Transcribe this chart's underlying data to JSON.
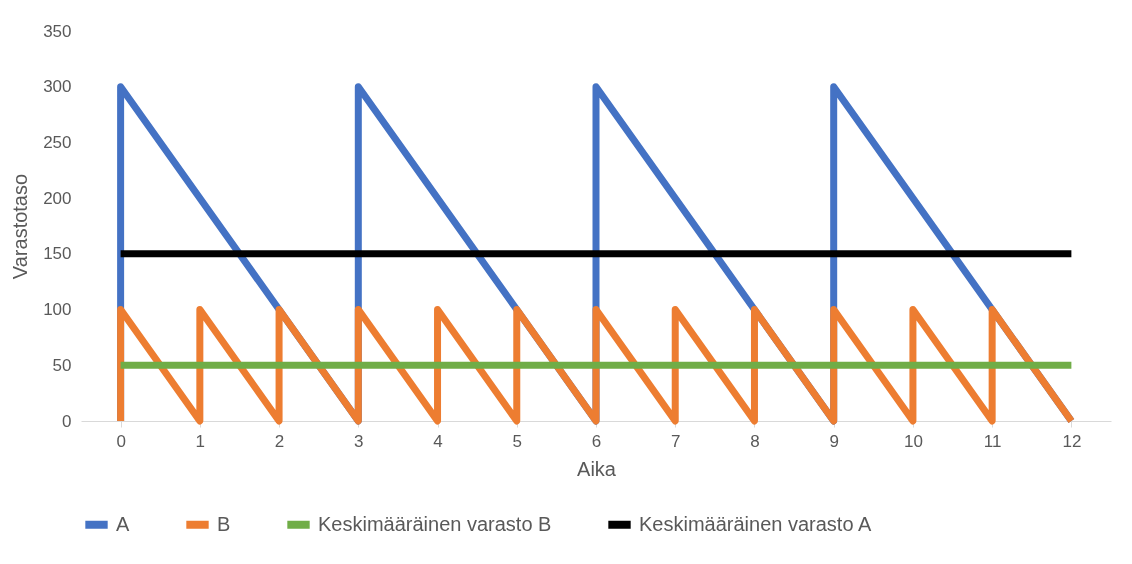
{
  "chart_data": {
    "type": "line",
    "xlabel": "Aika",
    "ylabel": "Varastotaso",
    "xlim": [
      -0.5,
      12.5
    ],
    "xticks": [
      0,
      1,
      2,
      3,
      4,
      5,
      6,
      7,
      8,
      9,
      10,
      11,
      12
    ],
    "ylim": [
      0,
      350
    ],
    "yticks": [
      0,
      50,
      100,
      150,
      200,
      250,
      300,
      350
    ],
    "legend": "bottom",
    "line_style": "solid",
    "marker": "none",
    "series": [
      {
        "name": "A",
        "color": "#4472c4",
        "x": [
          0,
          0,
          3,
          3,
          6,
          6,
          9,
          9,
          12
        ],
        "values": [
          0,
          300,
          0,
          300,
          0,
          300,
          0,
          300,
          0
        ]
      },
      {
        "name": "B",
        "color": "#ed7d31",
        "x": [
          0,
          0,
          1,
          1,
          2,
          2,
          3,
          3,
          4,
          4,
          5,
          5,
          6,
          6,
          7,
          7,
          8,
          8,
          9,
          9,
          10,
          10,
          11,
          11,
          12
        ],
        "values": [
          0,
          100,
          0,
          100,
          0,
          100,
          0,
          100,
          0,
          100,
          0,
          100,
          0,
          100,
          0,
          100,
          0,
          100,
          0,
          100,
          0,
          100,
          0,
          100,
          0
        ]
      },
      {
        "name": "Keskimääräinen varasto B",
        "color": "#70ad47",
        "x": [
          0,
          12
        ],
        "values": [
          50,
          50
        ]
      },
      {
        "name": "Keskimääräinen varasto A",
        "color": "#000000",
        "x": [
          0,
          12
        ],
        "values": [
          150,
          150
        ]
      }
    ]
  }
}
